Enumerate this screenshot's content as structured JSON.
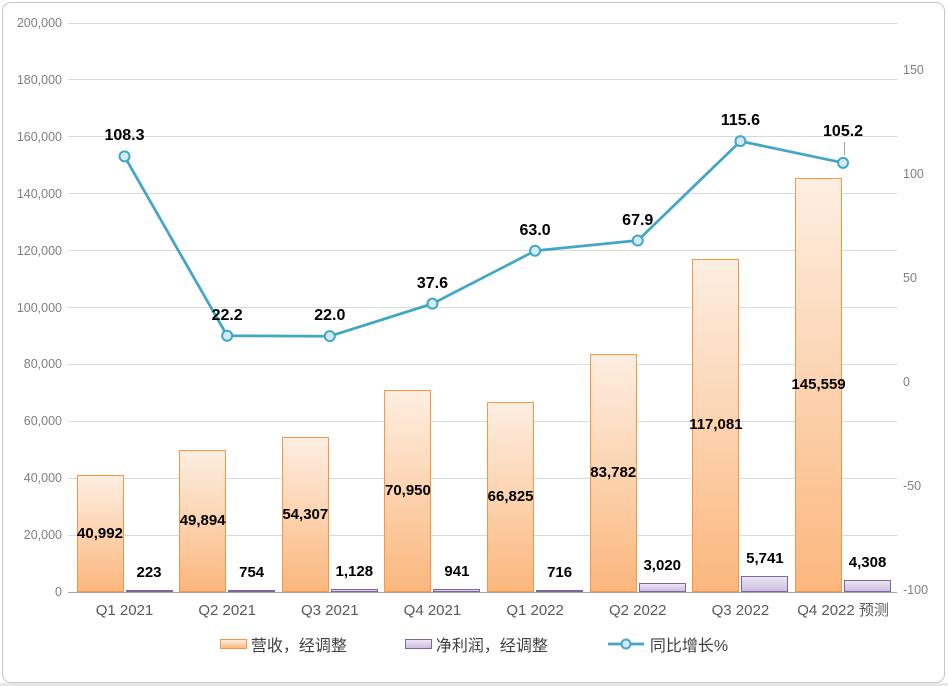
{
  "chart_data": {
    "type": "combo-bar-line",
    "categories": [
      "Q1 2021",
      "Q2 2021",
      "Q3 2021",
      "Q4 2021",
      "Q1 2022",
      "Q2 2022",
      "Q3 2022",
      "Q4 2022 预测"
    ],
    "series": [
      {
        "name": "营收，经调整",
        "type": "bar",
        "axis": "left",
        "values": [
          40992,
          49894,
          54307,
          70950,
          66825,
          83782,
          117081,
          145559
        ],
        "data_labels": [
          "40,992",
          "49,894",
          "54,307",
          "70,950",
          "66,825",
          "83,782",
          "117,081",
          "145,559"
        ],
        "label_position": "inside-center",
        "border_color": "#F79646",
        "fill_top": "#FDEFE2",
        "fill_bottom": "#FBB77D"
      },
      {
        "name": "净利润，经调整",
        "type": "bar",
        "axis": "left",
        "values": [
          223,
          754,
          1128,
          941,
          716,
          3020,
          5741,
          4308
        ],
        "data_labels": [
          "223",
          "754",
          "1,128",
          "941",
          "716",
          "3,020",
          "5,741",
          "4,308"
        ],
        "label_position": "above",
        "border_color": "#8064A2",
        "fill_top": "#EBE6F3",
        "fill_bottom": "#CDBFE0"
      },
      {
        "name": "同比增长%",
        "type": "line",
        "axis": "right",
        "values": [
          108.3,
          22.2,
          22.0,
          37.6,
          63.0,
          67.9,
          115.6,
          105.2
        ],
        "data_labels": [
          "108.3",
          "22.2",
          "22.0",
          "37.6",
          "63.0",
          "67.9",
          "115.6",
          "105.2"
        ],
        "label_position": "above",
        "line_color": "#42A6C5",
        "marker_fill": "#D3EBF5"
      }
    ],
    "left_axis": {
      "min": 0,
      "max": 200000,
      "tick_values": [
        0,
        20000,
        40000,
        60000,
        80000,
        100000,
        120000,
        140000,
        160000,
        180000,
        200000
      ],
      "tick_labels": [
        "0",
        "20,000",
        "40,000",
        "60,000",
        "80,000",
        "100,000",
        "120,000",
        "140,000",
        "160,000",
        "180,000",
        "200,000"
      ]
    },
    "right_axis": {
      "min": -100,
      "max": 150,
      "tick_values": [
        150,
        100,
        50,
        0,
        -50,
        -100
      ],
      "tick_labels": [
        "150",
        "100",
        "50",
        "0",
        "-50",
        "-100"
      ]
    },
    "legend": {
      "position": "bottom"
    },
    "grid": "horizontal",
    "colors": {
      "gridline": "#D9D9D9",
      "axis_line": "#A6A6A6",
      "axis_text": "#7F7F7F",
      "xlabel_text": "#595959",
      "frame_border": "#C6C6C6"
    }
  }
}
